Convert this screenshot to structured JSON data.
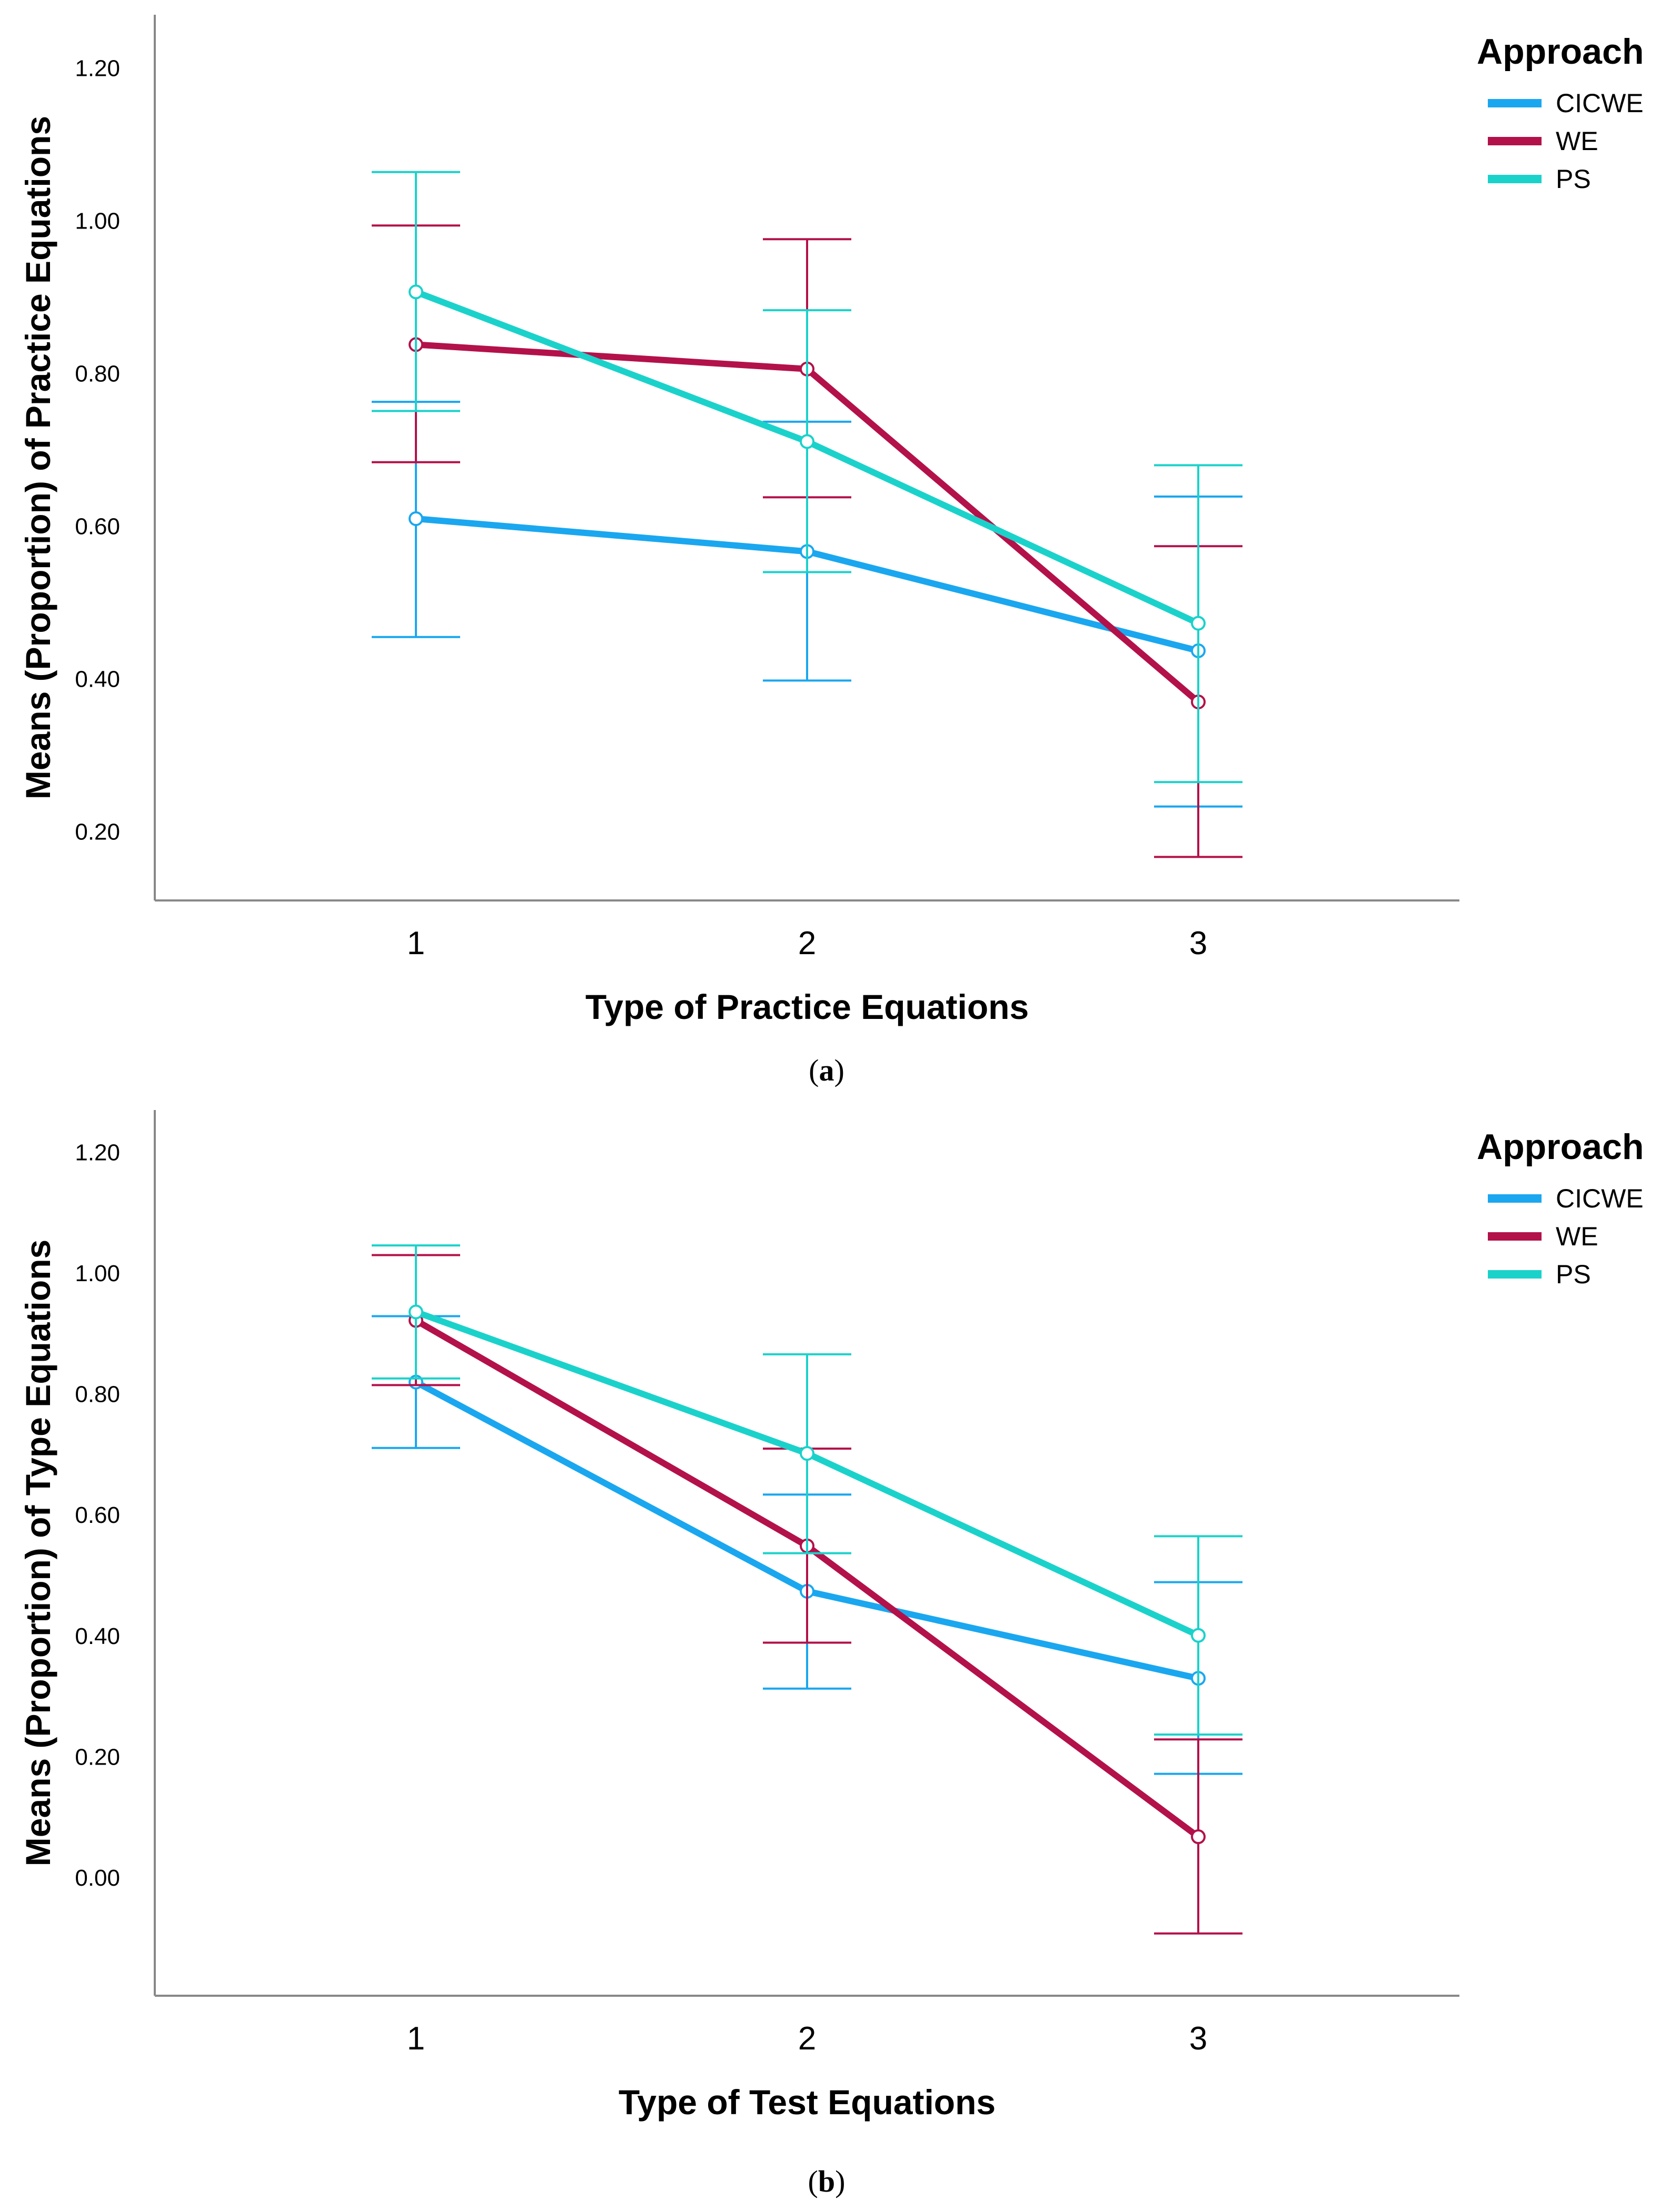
{
  "chart_data": [
    {
      "type": "line",
      "panel": "a",
      "caption": {
        "open": "(",
        "letter": "a",
        "close": ")"
      },
      "xlabel": "Type of Practice Equations",
      "ylabel": "Means (Proportion) of Practice Equations",
      "categories": [
        "1",
        "2",
        "3"
      ],
      "ylim": [
        0.11,
        1.27
      ],
      "yticks": [
        0.2,
        0.4,
        0.6,
        0.8,
        1.0,
        1.2
      ],
      "ytick_labels": [
        "0.20",
        "0.40",
        "0.60",
        "0.80",
        "1.00",
        "1.20"
      ],
      "grid": false,
      "legend": {
        "title": "Approach",
        "position": "top-right"
      },
      "series": [
        {
          "name": "CICWE",
          "color": "#1aa7ef",
          "values": [
            0.61,
            0.567,
            0.437
          ],
          "lower": [
            0.455,
            0.398,
            0.233
          ],
          "upper": [
            0.763,
            0.737,
            0.639
          ]
        },
        {
          "name": "WE",
          "color": "#b3114a",
          "values": [
            0.838,
            0.806,
            0.37
          ],
          "lower": [
            0.684,
            0.638,
            0.167
          ],
          "upper": [
            0.994,
            0.976,
            0.574
          ]
        },
        {
          "name": "PS",
          "color": "#1bd2cb",
          "values": [
            0.907,
            0.711,
            0.473
          ],
          "lower": [
            0.751,
            0.54,
            0.265
          ],
          "upper": [
            1.064,
            0.883,
            0.68
          ]
        }
      ]
    },
    {
      "type": "line",
      "panel": "b",
      "caption": {
        "open": "(",
        "letter": "b",
        "close": ")"
      },
      "xlabel": "Type of Test Equations",
      "ylabel": "Means (Proportion) of Type Equations",
      "categories": [
        "1",
        "2",
        "3"
      ],
      "ylim": [
        -0.195,
        1.27
      ],
      "yticks": [
        0.0,
        0.2,
        0.4,
        0.6,
        0.8,
        1.0,
        1.2
      ],
      "ytick_labels": [
        "0.00",
        "0.20",
        "0.40",
        "0.60",
        "0.80",
        "1.00",
        "1.20"
      ],
      "grid": false,
      "legend": {
        "title": "Approach",
        "position": "top-right"
      },
      "series": [
        {
          "name": "CICWE",
          "color": "#1aa7ef",
          "values": [
            0.82,
            0.474,
            0.33
          ],
          "lower": [
            0.711,
            0.313,
            0.172
          ],
          "upper": [
            0.929,
            0.634,
            0.489
          ]
        },
        {
          "name": "WE",
          "color": "#b3114a",
          "values": [
            0.922,
            0.549,
            0.068
          ],
          "lower": [
            0.815,
            0.389,
            -0.092
          ],
          "upper": [
            1.03,
            0.71,
            0.229
          ]
        },
        {
          "name": "PS",
          "color": "#1bd2cb",
          "values": [
            0.936,
            0.702,
            0.401
          ],
          "lower": [
            0.826,
            0.537,
            0.237
          ],
          "upper": [
            1.046,
            0.866,
            0.565
          ]
        }
      ]
    }
  ]
}
